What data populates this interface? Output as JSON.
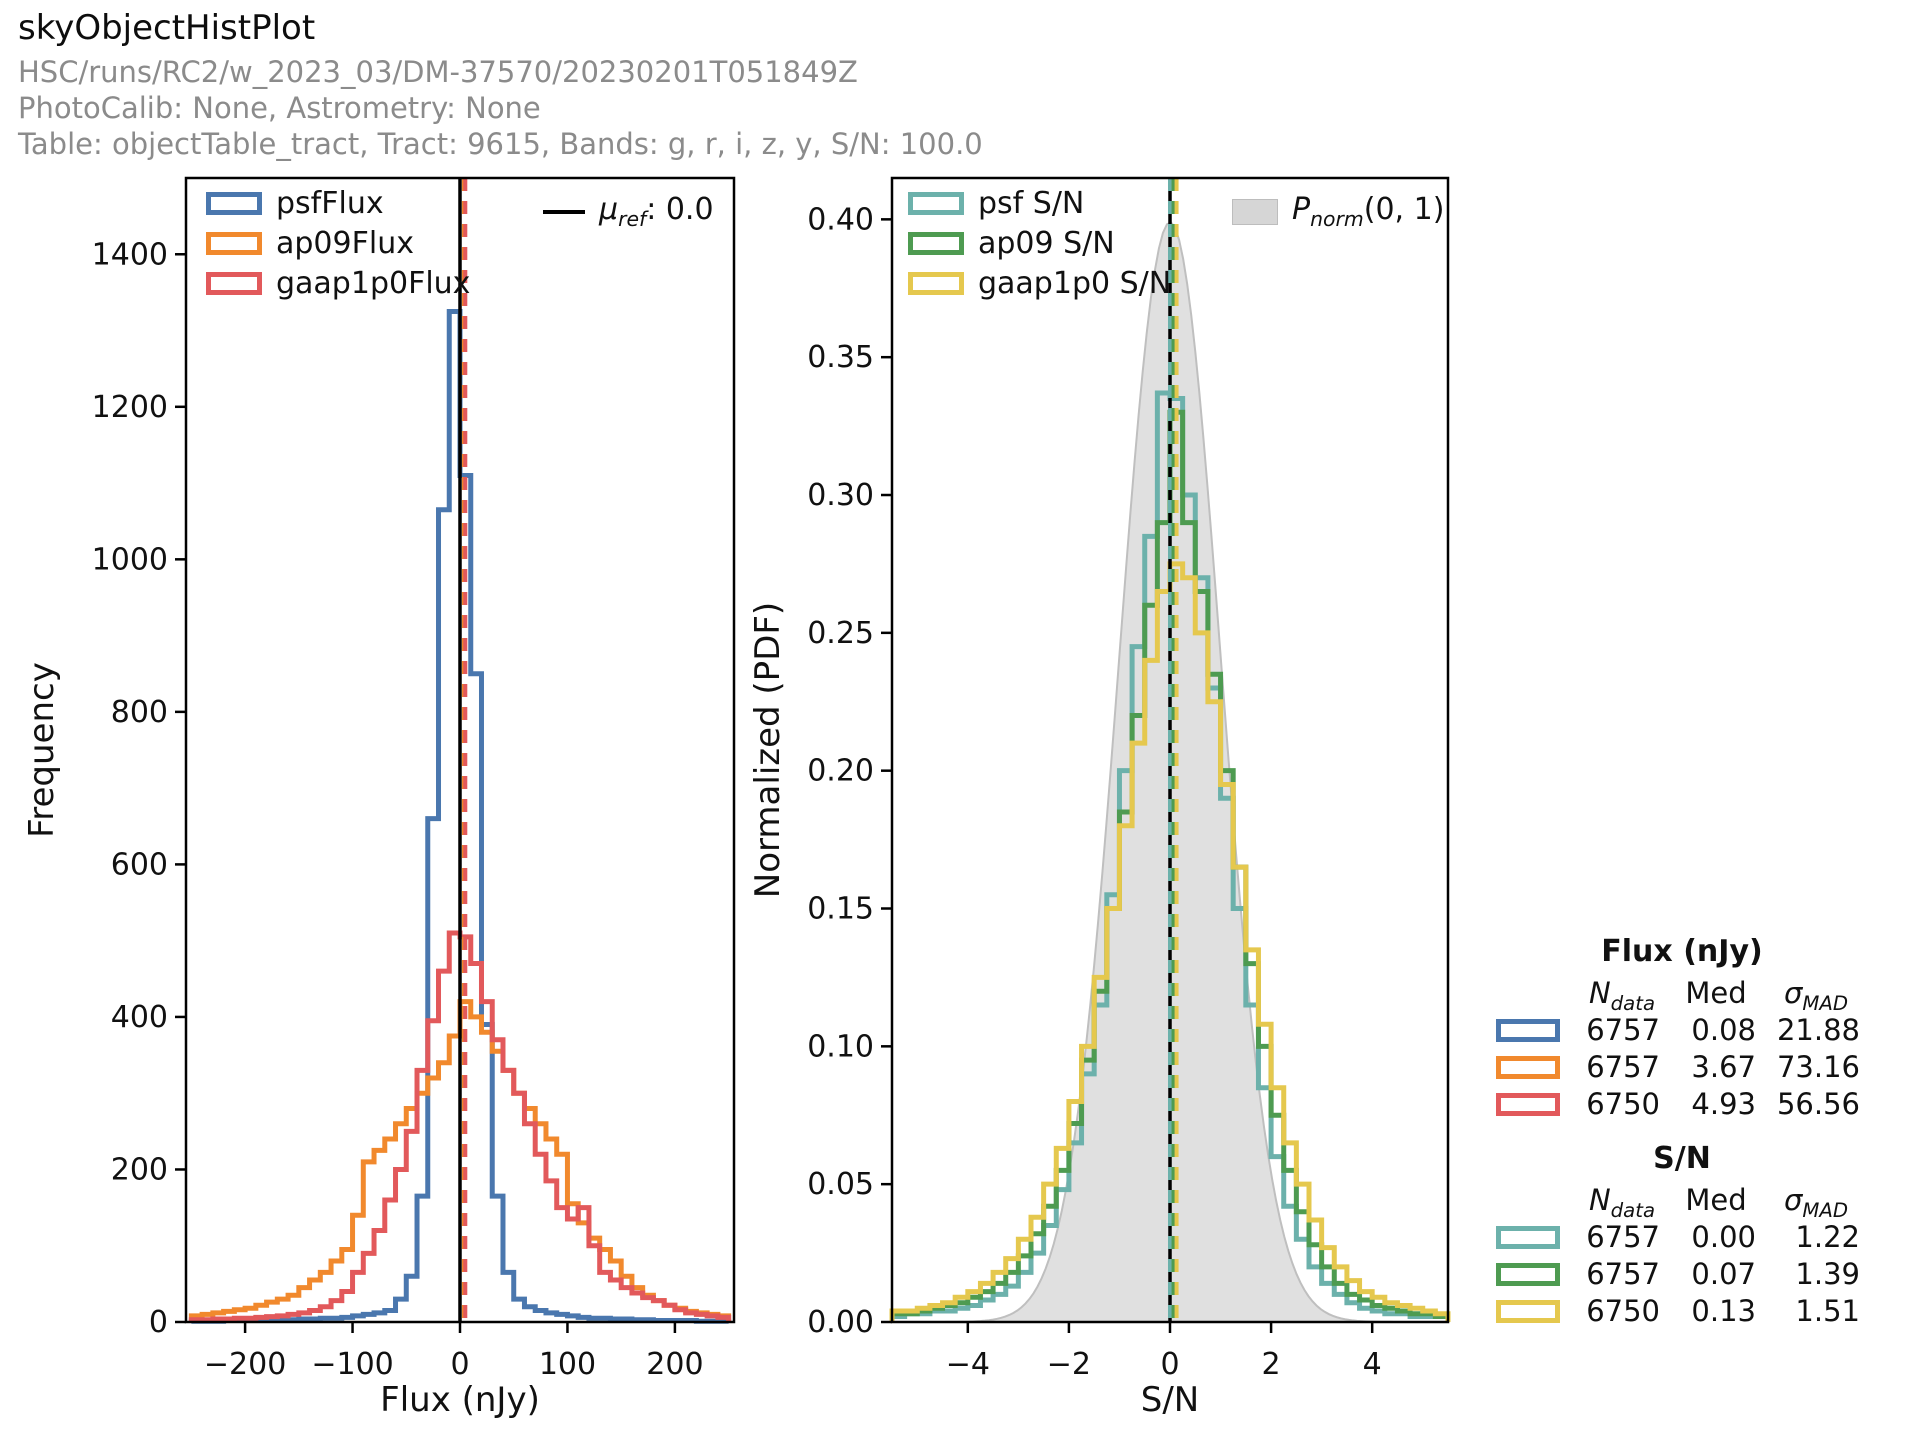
{
  "header": {
    "title": "skyObjectHistPlot",
    "run_line": "HSC/runs/RC2/w_2023_03/DM-37570/20230201T051849Z",
    "calib_line": "PhotoCalib: None, Astrometry: None",
    "table_line": "Table: objectTable_tract, Tract: 9615, Bands: g, r, i, z, y, S/N: 100.0"
  },
  "colors": {
    "blue": "#4a77ae",
    "orange": "#f1892d",
    "red": "#e2595b",
    "teal": "#6cb1ab",
    "green": "#4e9b51",
    "yellow": "#e5c84e",
    "gray_fill": "#d6d6d6",
    "ref_black": "#000000"
  },
  "chart_data": [
    {
      "type": "histogram-step",
      "xlabel": "Flux (nJy)",
      "ylabel": "Frequency",
      "xlim": [
        -255,
        255
      ],
      "ylim": [
        0,
        1500
      ],
      "xticks": [
        -200,
        -100,
        0,
        100,
        200
      ],
      "yticks": [
        0,
        200,
        400,
        600,
        800,
        1000,
        1200,
        1400
      ],
      "ytick_decimals": 0,
      "grid": false,
      "legend_position": "upper-left",
      "bin_start": -250,
      "bin_width": 10,
      "series": [
        {
          "name": "psfFlux",
          "color_key": "blue",
          "values": [
            1,
            1,
            1,
            2,
            2,
            2,
            2,
            3,
            3,
            3,
            4,
            4,
            5,
            5,
            6,
            8,
            10,
            12,
            15,
            30,
            60,
            165,
            660,
            1065,
            1325,
            1110,
            850,
            390,
            165,
            65,
            30,
            20,
            15,
            12,
            10,
            8,
            6,
            5,
            5,
            4,
            4,
            3,
            3,
            2,
            2,
            2,
            2,
            1,
            1,
            1
          ]
        },
        {
          "name": "ap09Flux",
          "color_key": "orange",
          "values": [
            8,
            10,
            12,
            14,
            16,
            18,
            22,
            26,
            30,
            35,
            45,
            55,
            65,
            80,
            95,
            140,
            210,
            225,
            240,
            260,
            280,
            300,
            320,
            340,
            375,
            420,
            400,
            380,
            355,
            330,
            300,
            280,
            260,
            240,
            220,
            155,
            130,
            110,
            95,
            80,
            60,
            45,
            35,
            28,
            22,
            18,
            14,
            12,
            10,
            8
          ]
        },
        {
          "name": "gaap1p0Flux",
          "color_key": "red",
          "values": [
            3,
            3,
            4,
            4,
            5,
            5,
            6,
            7,
            8,
            10,
            12,
            15,
            20,
            28,
            40,
            65,
            90,
            120,
            160,
            200,
            250,
            330,
            395,
            460,
            510,
            505,
            470,
            420,
            370,
            330,
            300,
            260,
            220,
            185,
            150,
            135,
            150,
            100,
            65,
            55,
            45,
            38,
            32,
            28,
            22,
            16,
            12,
            10,
            8,
            6
          ]
        }
      ],
      "ref_line": {
        "x": 0.0,
        "legend": {
          "symbol": "μ",
          "sub": "ref",
          "suffix": ": 0.0"
        }
      },
      "median_lines": [
        {
          "x": 3.67,
          "color_key": "orange"
        },
        {
          "x": 4.93,
          "color_key": "red"
        }
      ]
    },
    {
      "type": "histogram-step",
      "xlabel": "S/N",
      "ylabel": "Normalized (PDF)",
      "xlim": [
        -5.5,
        5.5
      ],
      "ylim": [
        0,
        0.415
      ],
      "xticks": [
        -4,
        -2,
        0,
        2,
        4
      ],
      "yticks": [
        0,
        0.05,
        0.1,
        0.15,
        0.2,
        0.25,
        0.3,
        0.35,
        0.4
      ],
      "ytick_decimals": 2,
      "grid": false,
      "legend_position": "upper-left",
      "bin_start": -5.5,
      "bin_width": 0.25,
      "series": [
        {
          "name": "psf S/N",
          "color_key": "teal",
          "values": [
            0.002,
            0.003,
            0.003,
            0.004,
            0.004,
            0.005,
            0.006,
            0.008,
            0.01,
            0.013,
            0.018,
            0.025,
            0.035,
            0.048,
            0.065,
            0.09,
            0.115,
            0.155,
            0.2,
            0.245,
            0.285,
            0.337,
            0.335,
            0.3,
            0.27,
            0.23,
            0.19,
            0.15,
            0.115,
            0.085,
            0.06,
            0.042,
            0.03,
            0.02,
            0.014,
            0.01,
            0.007,
            0.005,
            0.004,
            0.003,
            0.003,
            0.002,
            0.002,
            0.002
          ]
        },
        {
          "name": "ap09 S/N",
          "color_key": "green",
          "values": [
            0.003,
            0.003,
            0.004,
            0.005,
            0.006,
            0.007,
            0.009,
            0.011,
            0.014,
            0.018,
            0.024,
            0.032,
            0.042,
            0.055,
            0.072,
            0.095,
            0.12,
            0.15,
            0.185,
            0.22,
            0.26,
            0.29,
            0.33,
            0.29,
            0.265,
            0.235,
            0.2,
            0.165,
            0.13,
            0.1,
            0.075,
            0.055,
            0.04,
            0.028,
            0.02,
            0.014,
            0.01,
            0.008,
            0.006,
            0.005,
            0.004,
            0.003,
            0.003,
            0.002
          ]
        },
        {
          "name": "gaap1p0 S/N",
          "color_key": "yellow",
          "values": [
            0.004,
            0.004,
            0.005,
            0.006,
            0.007,
            0.009,
            0.011,
            0.014,
            0.018,
            0.023,
            0.03,
            0.038,
            0.05,
            0.063,
            0.08,
            0.1,
            0.125,
            0.15,
            0.18,
            0.21,
            0.24,
            0.265,
            0.275,
            0.27,
            0.25,
            0.225,
            0.195,
            0.165,
            0.135,
            0.108,
            0.085,
            0.065,
            0.05,
            0.037,
            0.027,
            0.02,
            0.015,
            0.011,
            0.009,
            0.007,
            0.006,
            0.005,
            0.004,
            0.003
          ]
        }
      ],
      "normal_overlay": {
        "mean": 0,
        "sigma": 1,
        "legend": {
          "symbol": "P",
          "sub": "norm",
          "suffix": "(0, 1)"
        }
      },
      "ref_line": {
        "x": 0.0
      },
      "median_lines": [
        {
          "x": 0.0,
          "color_key": "teal"
        },
        {
          "x": 0.07,
          "color_key": "green"
        },
        {
          "x": 0.13,
          "color_key": "yellow"
        }
      ]
    }
  ],
  "stats_table": {
    "col_n": {
      "main": "N",
      "sub": "data"
    },
    "col_med": "Med",
    "col_sigma": {
      "main": "σ",
      "sub": "MAD"
    },
    "flux_section": {
      "title": "Flux (nJy)",
      "rows": [
        {
          "color_key": "blue",
          "n": "6757",
          "med": "0.08",
          "sigma_mad": "21.88"
        },
        {
          "color_key": "orange",
          "n": "6757",
          "med": "3.67",
          "sigma_mad": "73.16"
        },
        {
          "color_key": "red",
          "n": "6750",
          "med": "4.93",
          "sigma_mad": "56.56"
        }
      ]
    },
    "sn_section": {
      "title": "S/N",
      "rows": [
        {
          "color_key": "teal",
          "n": "6757",
          "med": "0.00",
          "sigma_mad": "1.22"
        },
        {
          "color_key": "green",
          "n": "6757",
          "med": "0.07",
          "sigma_mad": "1.39"
        },
        {
          "color_key": "yellow",
          "n": "6750",
          "med": "0.13",
          "sigma_mad": "1.51"
        }
      ]
    }
  }
}
